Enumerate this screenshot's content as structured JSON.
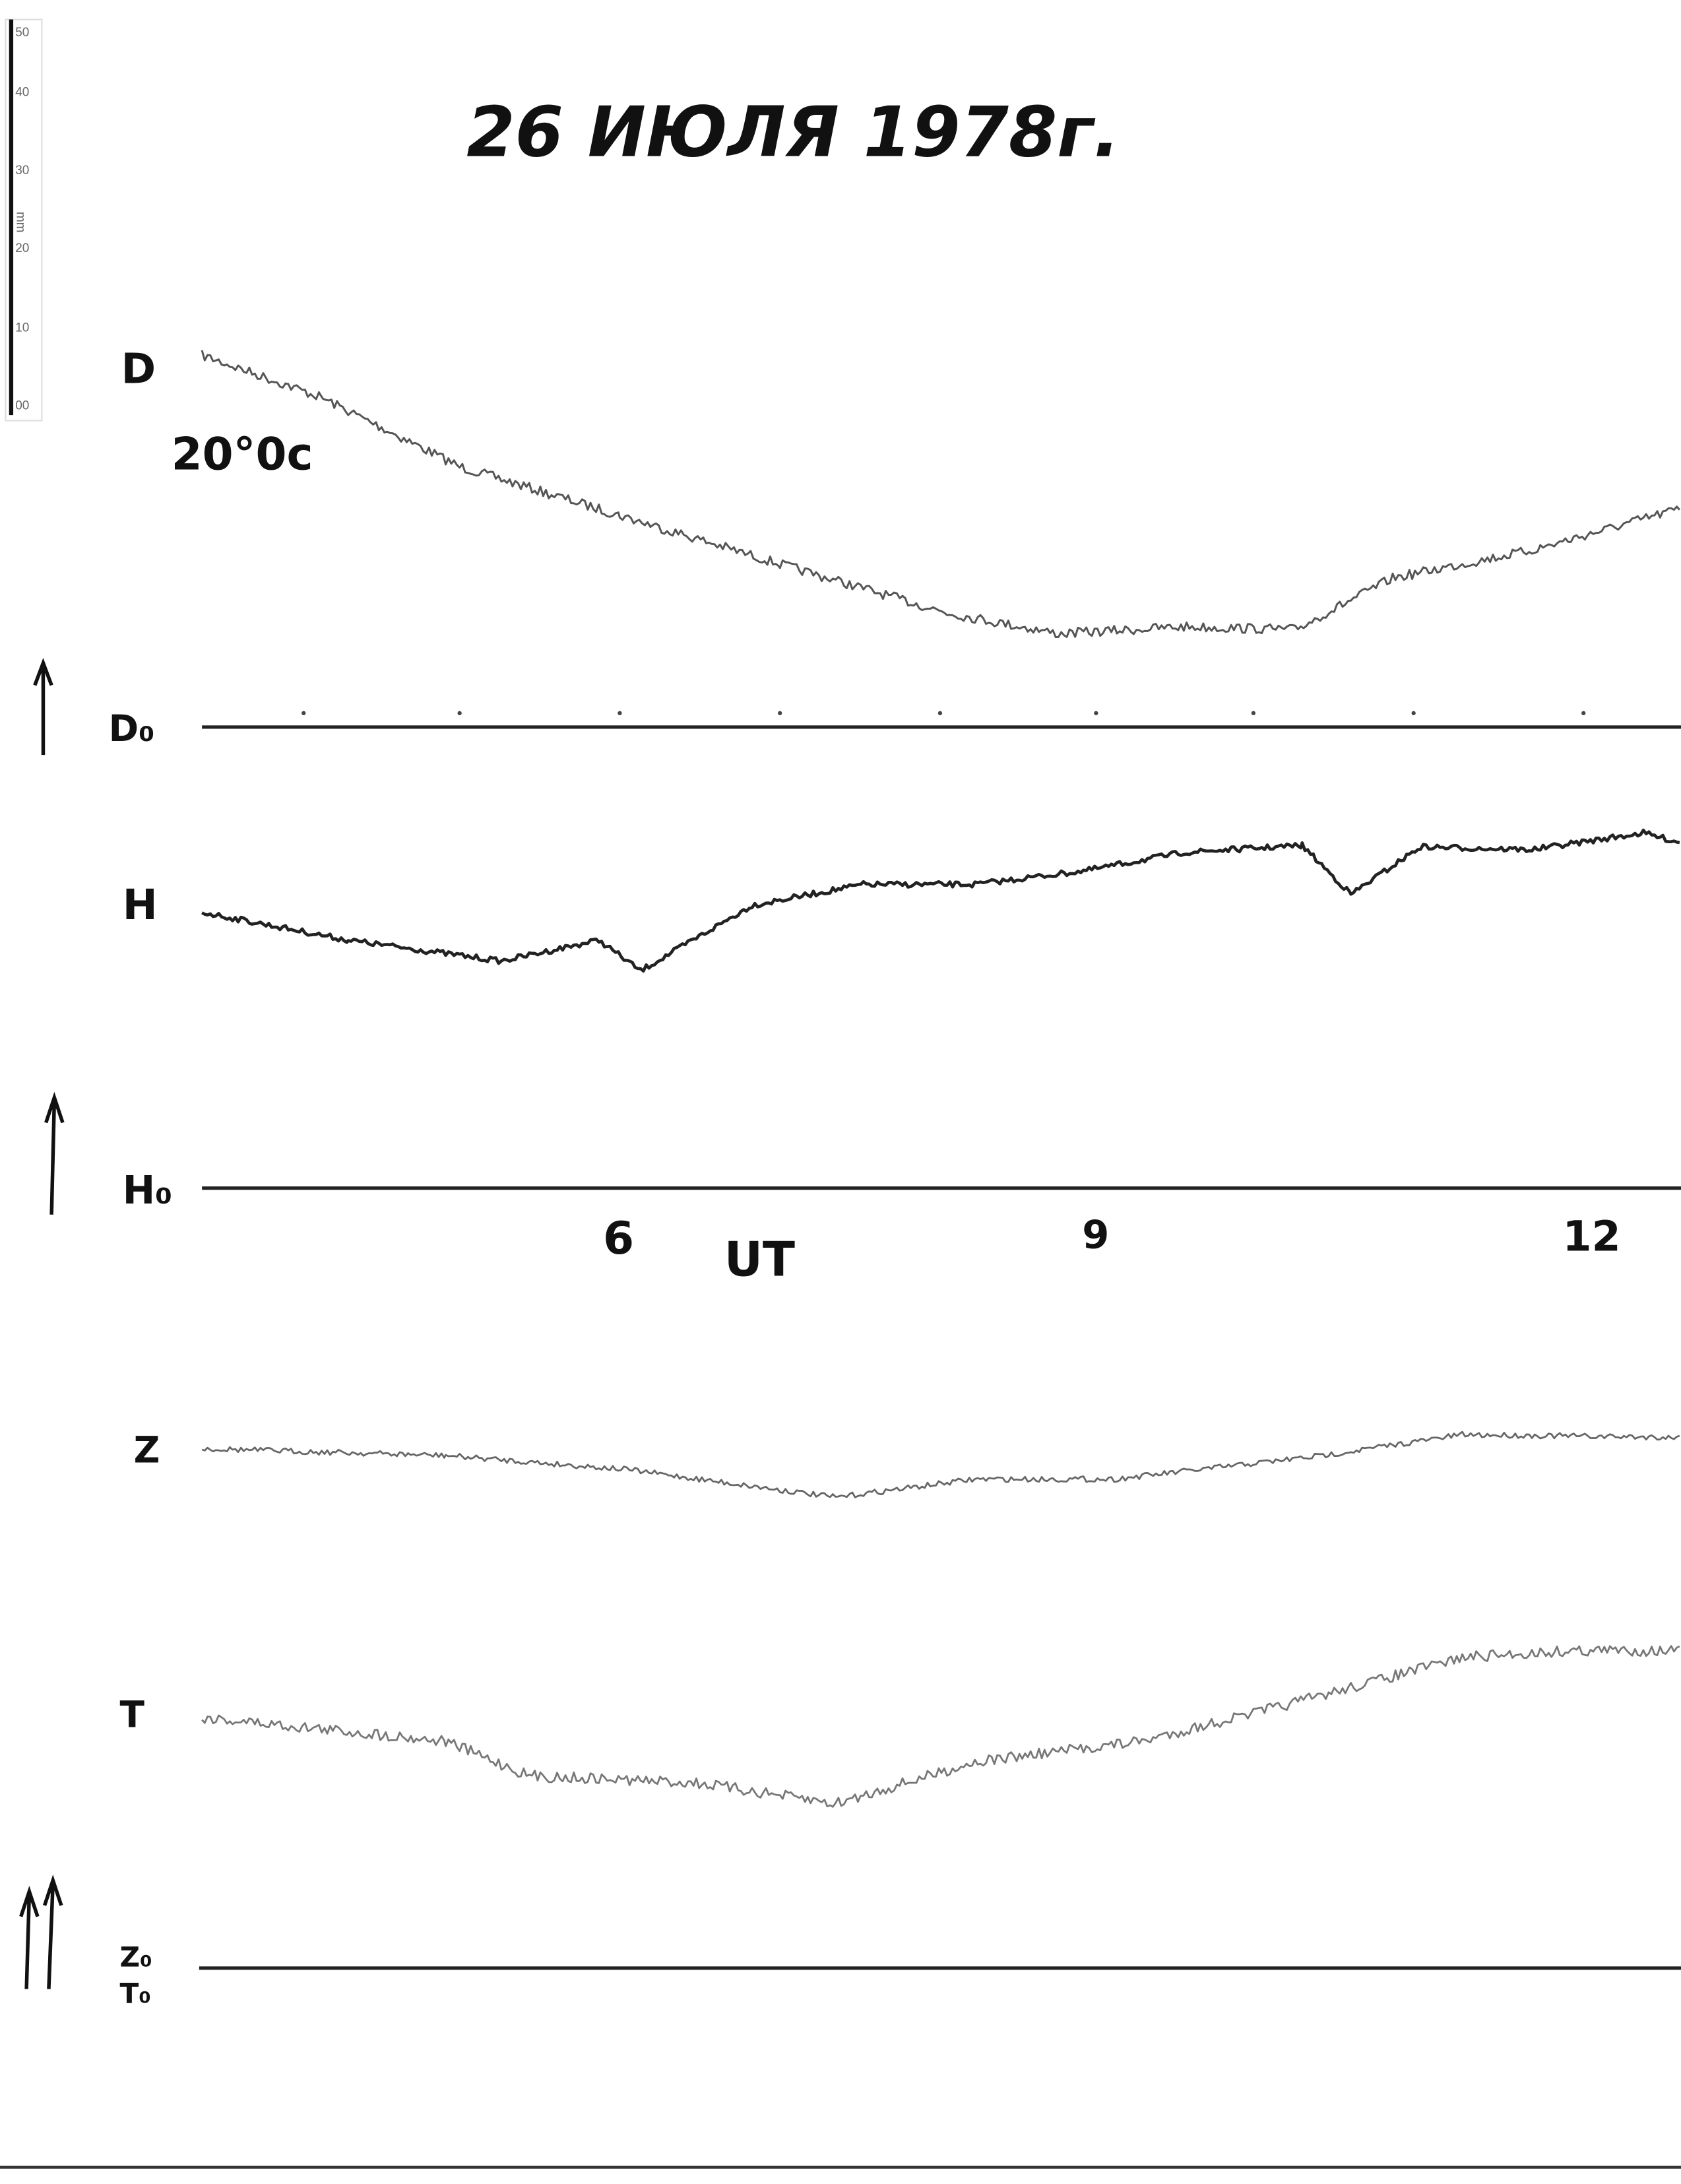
{
  "header": {
    "title": "26 ИЮЛЯ 1978г."
  },
  "scale": {
    "labels": [
      "50",
      "40",
      "30",
      "20",
      "10",
      "00"
    ],
    "unit": "mm"
  },
  "traces": {
    "d": "D",
    "d_scale": "20°0c",
    "d0": "D₀",
    "h": "H",
    "h0": "H₀",
    "z": "Z",
    "t": "T",
    "z0": "Z₀",
    "t0": "T₀"
  },
  "time_axis": {
    "ticks": [
      "6",
      "9",
      "12"
    ],
    "label": "UT"
  }
}
